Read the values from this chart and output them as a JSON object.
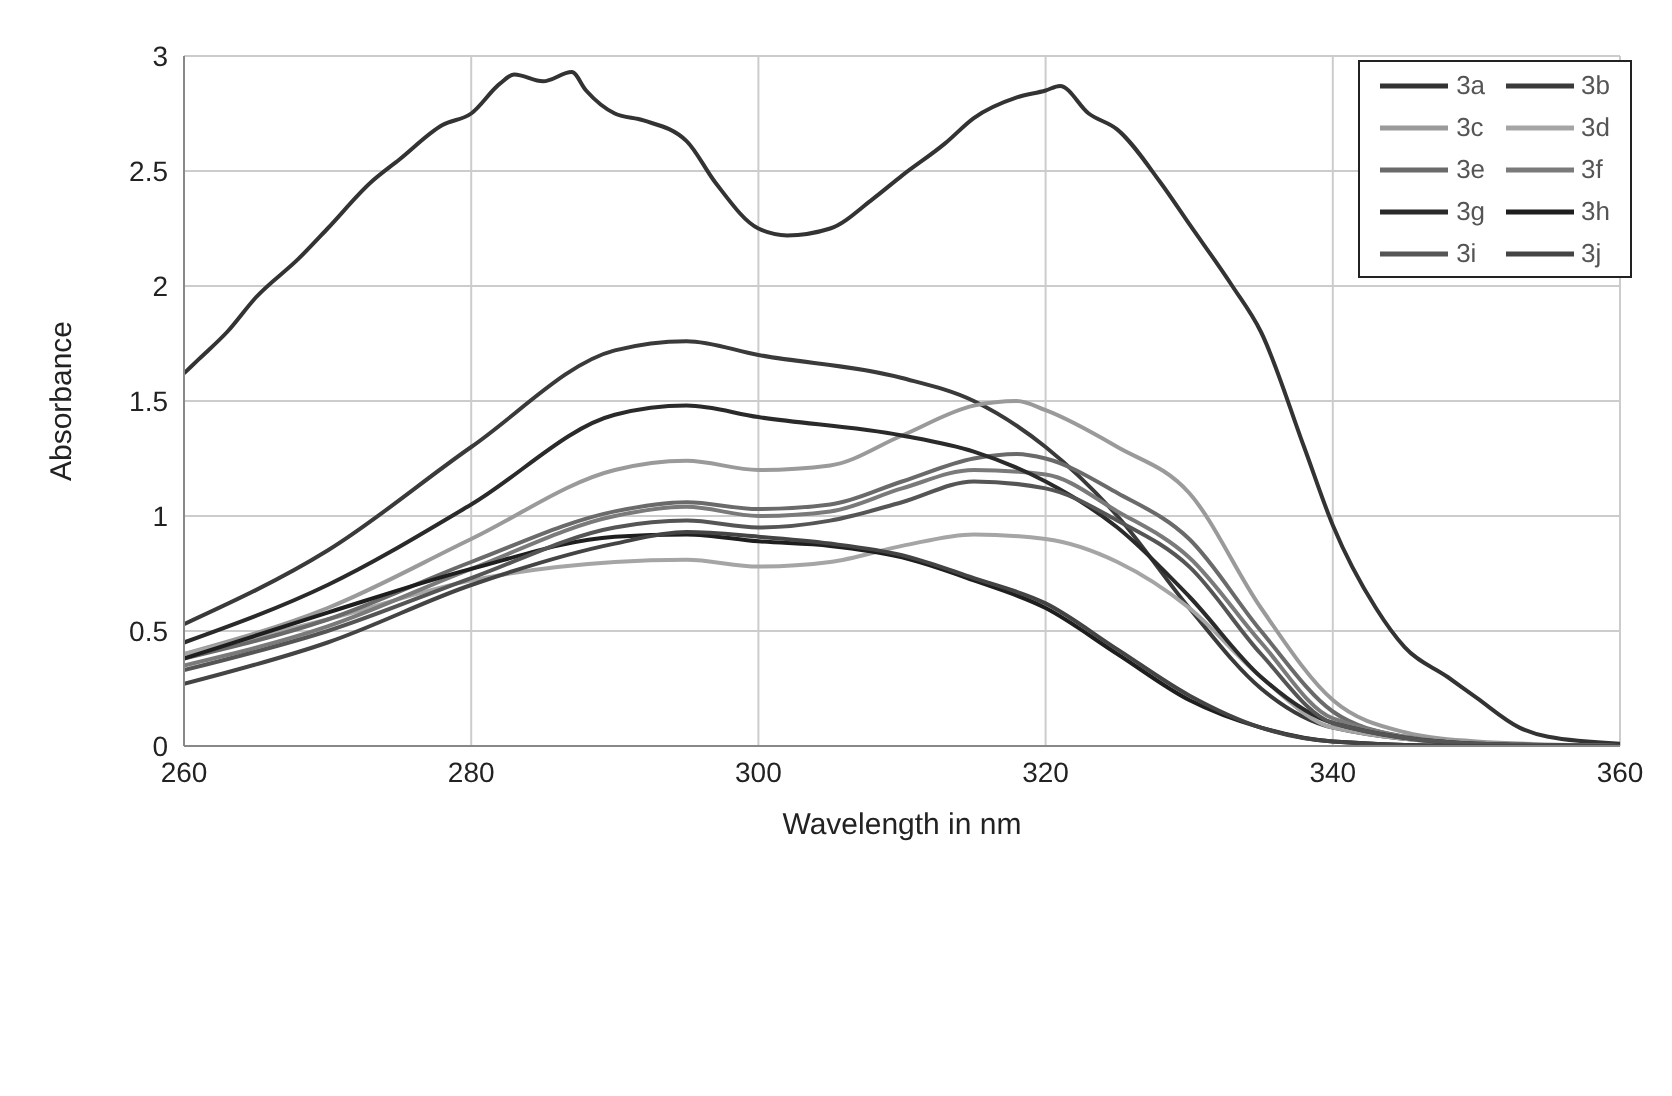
{
  "chart_data": {
    "type": "line",
    "xlabel": "Wavelength in nm",
    "ylabel": "Absorbance",
    "xlim": [
      260,
      360
    ],
    "xticks": [
      260,
      280,
      300,
      320,
      340,
      360
    ],
    "ylim": [
      0,
      3
    ],
    "yticks": [
      0,
      0.5,
      1,
      1.5,
      2,
      2.5,
      3
    ],
    "grid": true,
    "legend": "top right",
    "marker": "none",
    "line_style": "solid",
    "series": [
      {
        "name": "3a",
        "color": "#333333",
        "x": [
          260,
          261,
          263,
          265,
          268,
          270,
          273,
          275,
          278,
          280,
          282,
          283,
          285,
          287,
          288,
          290,
          292,
          295,
          297,
          300,
          302,
          305,
          308,
          310,
          313,
          315,
          318,
          320,
          321,
          323,
          325,
          328,
          330,
          333,
          335,
          338,
          340,
          343,
          345,
          348,
          350,
          353,
          355,
          360
        ],
        "values": [
          1.62,
          1.68,
          1.8,
          1.95,
          2.12,
          2.25,
          2.45,
          2.55,
          2.7,
          2.75,
          2.88,
          2.92,
          2.89,
          2.93,
          2.85,
          2.75,
          2.72,
          2.63,
          2.45,
          2.25,
          2.22,
          2.25,
          2.38,
          2.48,
          2.62,
          2.73,
          2.82,
          2.85,
          2.87,
          2.75,
          2.68,
          2.45,
          2.27,
          2.0,
          1.8,
          1.3,
          0.96,
          0.6,
          0.43,
          0.3,
          0.21,
          0.08,
          0.04,
          0.01
        ]
      },
      {
        "name": "3b",
        "color": "#3a3a3a",
        "x": [
          260,
          270,
          280,
          290,
          295,
          300,
          310,
          315,
          320,
          325,
          330,
          335,
          340,
          350,
          360
        ],
        "values": [
          0.53,
          0.85,
          1.3,
          1.72,
          1.76,
          1.7,
          1.6,
          1.5,
          1.3,
          1.0,
          0.6,
          0.25,
          0.08,
          0.01,
          0
        ]
      },
      {
        "name": "3c",
        "color": "#9a9a9a",
        "x": [
          260,
          270,
          280,
          290,
          295,
          300,
          305,
          310,
          315,
          318,
          320,
          325,
          330,
          335,
          340,
          345,
          350,
          360
        ],
        "values": [
          0.4,
          0.6,
          0.9,
          1.2,
          1.24,
          1.2,
          1.22,
          1.35,
          1.48,
          1.5,
          1.46,
          1.3,
          1.1,
          0.6,
          0.2,
          0.06,
          0.02,
          0
        ]
      },
      {
        "name": "3d",
        "color": "#a5a5a5",
        "x": [
          260,
          270,
          280,
          290,
          295,
          300,
          305,
          310,
          315,
          320,
          325,
          330,
          335,
          340,
          350,
          360
        ],
        "values": [
          0.4,
          0.55,
          0.72,
          0.8,
          0.81,
          0.78,
          0.8,
          0.87,
          0.92,
          0.9,
          0.8,
          0.6,
          0.3,
          0.08,
          0.01,
          0
        ]
      },
      {
        "name": "3e",
        "color": "#6a6a6a",
        "x": [
          260,
          270,
          280,
          290,
          295,
          300,
          305,
          310,
          315,
          318,
          320,
          325,
          330,
          335,
          340,
          345,
          350,
          360
        ],
        "values": [
          0.38,
          0.55,
          0.8,
          1.02,
          1.06,
          1.03,
          1.05,
          1.15,
          1.25,
          1.27,
          1.25,
          1.1,
          0.9,
          0.5,
          0.15,
          0.04,
          0.01,
          0
        ]
      },
      {
        "name": "3f",
        "color": "#7a7a7a",
        "x": [
          260,
          270,
          280,
          290,
          295,
          300,
          305,
          310,
          315,
          320,
          325,
          330,
          335,
          340,
          350,
          360
        ],
        "values": [
          0.35,
          0.52,
          0.77,
          1.0,
          1.04,
          1.0,
          1.02,
          1.12,
          1.2,
          1.18,
          1.02,
          0.82,
          0.45,
          0.12,
          0.01,
          0
        ]
      },
      {
        "name": "3g",
        "color": "#2a2a2a",
        "x": [
          260,
          270,
          280,
          290,
          295,
          300,
          310,
          315,
          320,
          325,
          330,
          335,
          340,
          350,
          360
        ],
        "values": [
          0.45,
          0.7,
          1.05,
          1.44,
          1.48,
          1.43,
          1.35,
          1.28,
          1.15,
          0.95,
          0.65,
          0.3,
          0.1,
          0.01,
          0
        ]
      },
      {
        "name": "3h",
        "color": "#1e1e1e",
        "x": [
          260,
          270,
          280,
          290,
          295,
          300,
          305,
          310,
          315,
          320,
          325,
          330,
          335,
          340,
          350,
          360
        ],
        "values": [
          0.38,
          0.58,
          0.77,
          0.91,
          0.92,
          0.89,
          0.87,
          0.82,
          0.72,
          0.6,
          0.4,
          0.2,
          0.08,
          0.02,
          0,
          0
        ]
      },
      {
        "name": "3i",
        "color": "#555555",
        "x": [
          260,
          270,
          280,
          290,
          295,
          300,
          305,
          310,
          315,
          320,
          325,
          330,
          335,
          340,
          350,
          360
        ],
        "values": [
          0.33,
          0.5,
          0.73,
          0.95,
          0.98,
          0.95,
          0.98,
          1.06,
          1.15,
          1.12,
          0.98,
          0.78,
          0.4,
          0.1,
          0.01,
          0
        ]
      },
      {
        "name": "3j",
        "color": "#444444",
        "x": [
          260,
          270,
          280,
          290,
          295,
          300,
          305,
          310,
          315,
          320,
          325,
          330,
          335,
          340,
          350,
          360
        ],
        "values": [
          0.27,
          0.45,
          0.7,
          0.88,
          0.93,
          0.91,
          0.88,
          0.83,
          0.73,
          0.62,
          0.42,
          0.22,
          0.08,
          0.02,
          0,
          0
        ]
      }
    ]
  }
}
